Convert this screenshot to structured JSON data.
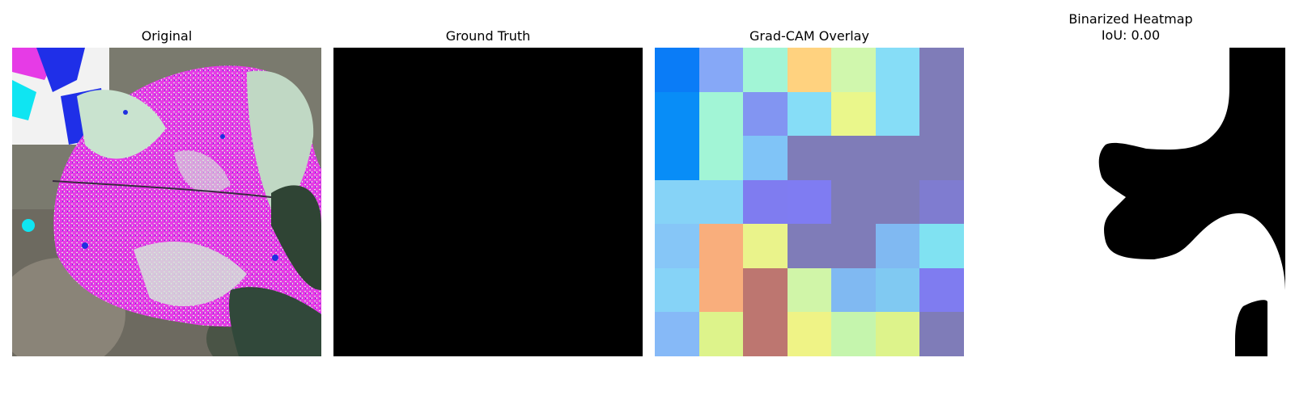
{
  "panels": [
    {
      "title": "Original"
    },
    {
      "title": "Ground Truth"
    },
    {
      "title": "Grad-CAM Overlay"
    },
    {
      "title": "Binarized Heatmap\nIoU: 0.00"
    }
  ],
  "gradcam_cells": [
    [
      "#0a7cf7",
      "#86a8f7",
      "#a2f5d6",
      "#ffd27f",
      "#d0f7ad",
      "#86ddf7",
      "#7f7cb8"
    ],
    [
      "#088df7",
      "#a2f5d6",
      "#8295f2",
      "#86ddf7",
      "#eaf78b",
      "#86ddf7",
      "#7f7cb8"
    ],
    [
      "#088df7",
      "#a2f5d6",
      "#80c4f7",
      "#7f7cb8",
      "#7f7cb8",
      "#7f7cb8",
      "#7f7cb8"
    ],
    [
      "#86d3f7",
      "#86d3f7",
      "#7f7cf0",
      "#7f7cf2",
      "#7f7cb8",
      "#7f7cb8",
      "#7f7cd0"
    ],
    [
      "#86c6f7",
      "#f9ae7c",
      "#eaf38b",
      "#7f7cb8",
      "#7f7cb8",
      "#80b9f2",
      "#80e2f2"
    ],
    [
      "#86d3f7",
      "#f9ae7c",
      "#bd7670",
      "#d0f5a8",
      "#80b9f2",
      "#80c9f2",
      "#7f7cf0"
    ],
    [
      "#86b9f7",
      "#ddf38b",
      "#bd7670",
      "#eff386",
      "#c5f5ad",
      "#ddf38b",
      "#7f7cb8"
    ]
  ]
}
